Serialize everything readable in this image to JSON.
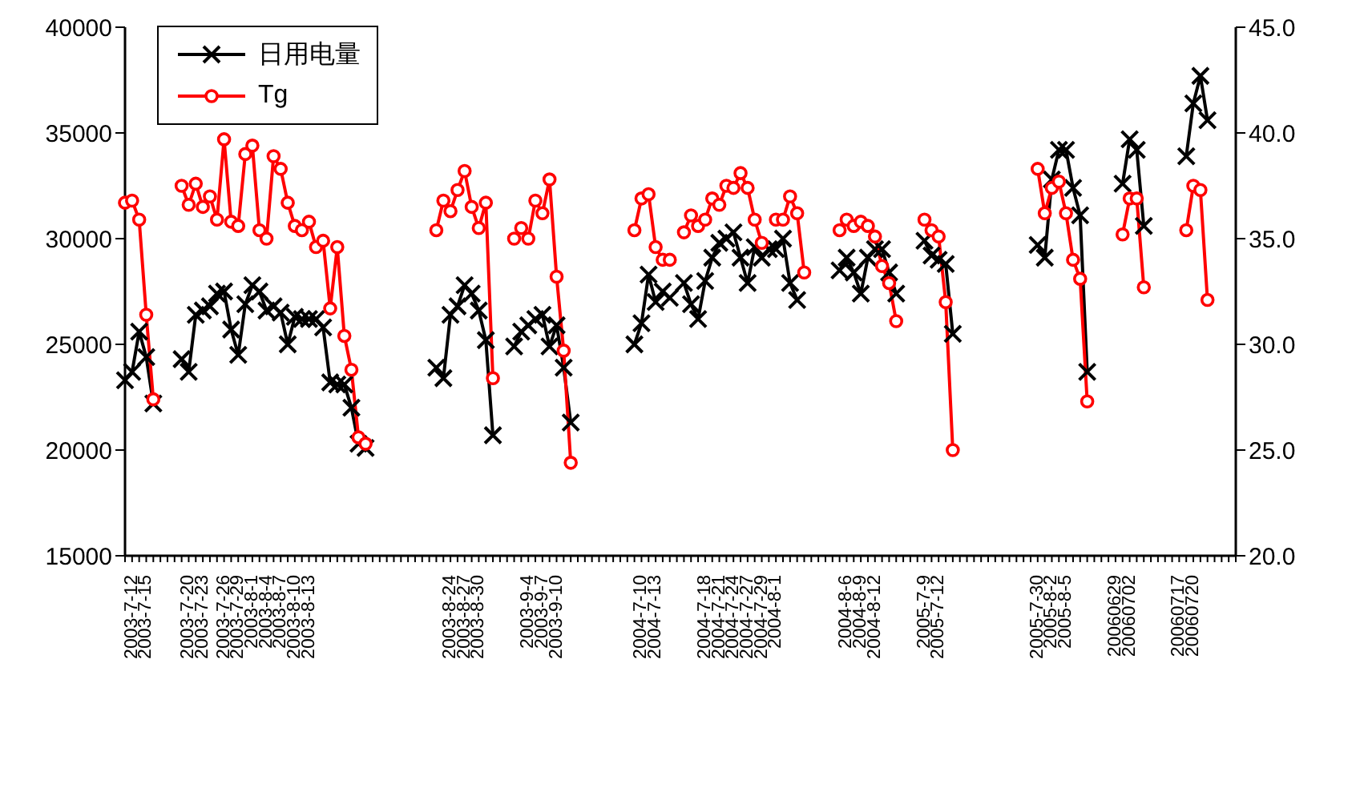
{
  "chart_data": {
    "type": "line",
    "categories": [
      null,
      "2003-7-12",
      null,
      "2003-7-15",
      null,
      null,
      null,
      null,
      null,
      "2003-7-20",
      null,
      "2003-7-23",
      null,
      null,
      "2003-7-26",
      null,
      "2003-7-29",
      null,
      "2003-8-1",
      null,
      "2003-8-4",
      null,
      "2003-8-7",
      null,
      "2003-8-10",
      null,
      "2003-8-13",
      null,
      null,
      null,
      null,
      null,
      null,
      null,
      null,
      null,
      null,
      null,
      null,
      null,
      null,
      null,
      null,
      null,
      null,
      null,
      "2003-8-24",
      null,
      "2003-8-27",
      null,
      "2003-8-30",
      null,
      null,
      null,
      null,
      null,
      null,
      "2003-9-4",
      null,
      "2003-9-7",
      null,
      "2003-9-10",
      null,
      null,
      null,
      null,
      null,
      null,
      null,
      null,
      null,
      null,
      null,
      "2004-7-10",
      null,
      "2004-7-13",
      null,
      null,
      null,
      null,
      null,
      null,
      "2004-7-18",
      null,
      "2004-7-21",
      null,
      "2004-7-24",
      null,
      "2004-7-27",
      null,
      "2004-7-29",
      null,
      "2004-8-1",
      null,
      null,
      null,
      null,
      null,
      null,
      null,
      null,
      null,
      "2004-8-6",
      null,
      "2004-8-9",
      null,
      "2004-8-12",
      null,
      null,
      null,
      null,
      null,
      null,
      "2005-7-9",
      null,
      "2005-7-12",
      null,
      null,
      null,
      null,
      null,
      null,
      null,
      null,
      null,
      null,
      null,
      null,
      null,
      "2005-7-30",
      null,
      "2005-8-2",
      null,
      "2005-8-5",
      null,
      null,
      null,
      null,
      null,
      null,
      "20060629",
      null,
      "20060702",
      null,
      null,
      null,
      null,
      null,
      null,
      "20060717",
      null,
      "20060720",
      null,
      null,
      null,
      null,
      null,
      null
    ],
    "series": [
      {
        "name": "日用电量",
        "color": "#000000",
        "marker": "cross",
        "values": [
          23300,
          23700,
          25600,
          24400,
          22200,
          null,
          null,
          null,
          24300,
          23700,
          26400,
          26600,
          26800,
          27400,
          27500,
          25700,
          24500,
          26900,
          27800,
          27500,
          26600,
          26800,
          26500,
          25000,
          26300,
          26200,
          26200,
          26200,
          25800,
          23200,
          23100,
          23100,
          22000,
          20300,
          20100,
          null,
          null,
          null,
          null,
          null,
          null,
          null,
          null,
          null,
          23900,
          23400,
          26400,
          26800,
          27800,
          27400,
          26600,
          25200,
          20700,
          null,
          null,
          24900,
          25600,
          25900,
          26200,
          26400,
          24900,
          25900,
          23900,
          21300,
          null,
          null,
          null,
          null,
          null,
          null,
          null,
          null,
          25000,
          26000,
          28300,
          27000,
          27500,
          27200,
          null,
          27900,
          26900,
          26200,
          28000,
          29100,
          29800,
          30000,
          30300,
          29100,
          27900,
          29600,
          29100,
          29500,
          29500,
          30000,
          27900,
          27100,
          null,
          null,
          null,
          null,
          null,
          28500,
          29100,
          28400,
          27400,
          29100,
          29500,
          29500,
          28400,
          27400,
          null,
          null,
          null,
          29900,
          29200,
          29000,
          28800,
          25500,
          null,
          null,
          null,
          null,
          null,
          null,
          null,
          null,
          null,
          null,
          null,
          29700,
          29100,
          32800,
          34200,
          34200,
          32400,
          31100,
          23700,
          null,
          null,
          null,
          null,
          32600,
          34700,
          34200,
          30600,
          null,
          null,
          null,
          null,
          null,
          33900,
          36400,
          37700,
          35600,
          null,
          null,
          null,
          null
        ]
      },
      {
        "name": "Tg",
        "color": "#ff0000",
        "marker": "circle",
        "axis": "y2",
        "values": [
          36.7,
          36.8,
          35.9,
          31.4,
          27.4,
          null,
          null,
          null,
          37.5,
          36.6,
          37.6,
          36.5,
          37.0,
          35.9,
          39.7,
          35.8,
          35.6,
          39.0,
          39.4,
          35.4,
          35.0,
          38.9,
          38.3,
          36.7,
          35.6,
          35.4,
          35.8,
          34.6,
          34.9,
          31.7,
          34.6,
          30.4,
          28.8,
          25.6,
          25.3,
          null,
          null,
          null,
          null,
          null,
          null,
          null,
          null,
          null,
          35.4,
          36.8,
          36.3,
          37.3,
          38.2,
          36.5,
          35.5,
          36.7,
          28.4,
          null,
          null,
          35.0,
          35.5,
          35.0,
          36.8,
          36.2,
          37.8,
          33.2,
          29.7,
          24.4,
          null,
          null,
          null,
          null,
          null,
          null,
          null,
          null,
          35.4,
          36.9,
          37.1,
          34.6,
          34.0,
          34.0,
          null,
          35.3,
          36.1,
          35.6,
          35.9,
          36.9,
          36.6,
          37.5,
          37.4,
          38.1,
          37.4,
          35.9,
          34.8,
          null,
          35.9,
          35.9,
          37.0,
          36.2,
          33.4,
          null,
          null,
          null,
          null,
          35.4,
          35.9,
          35.6,
          35.8,
          35.6,
          35.1,
          33.7,
          32.9,
          31.1,
          null,
          null,
          null,
          35.9,
          35.4,
          35.1,
          32.0,
          25.0,
          null,
          null,
          null,
          null,
          null,
          null,
          null,
          null,
          null,
          null,
          null,
          38.3,
          36.2,
          37.4,
          37.7,
          36.2,
          34.0,
          33.1,
          27.3,
          null,
          null,
          null,
          null,
          35.2,
          36.9,
          36.9,
          32.7,
          null,
          null,
          null,
          null,
          null,
          35.4,
          37.5,
          37.3,
          32.1,
          null,
          null,
          null,
          null
        ]
      }
    ],
    "ylim": [
      15000,
      40000
    ],
    "yticks": [
      15000,
      20000,
      25000,
      30000,
      35000,
      40000
    ],
    "y2lim": [
      20,
      45
    ],
    "y2ticks": [
      {
        "value": 20,
        "label": "20.0"
      },
      {
        "value": 25,
        "label": "25.0"
      },
      {
        "value": 30,
        "label": "30.0"
      },
      {
        "value": 35,
        "label": "35.0"
      },
      {
        "value": 40,
        "label": "40.0"
      },
      {
        "value": 45,
        "label": "45.0"
      }
    ],
    "legend": "top left",
    "line_style": "solid",
    "grid": false
  }
}
